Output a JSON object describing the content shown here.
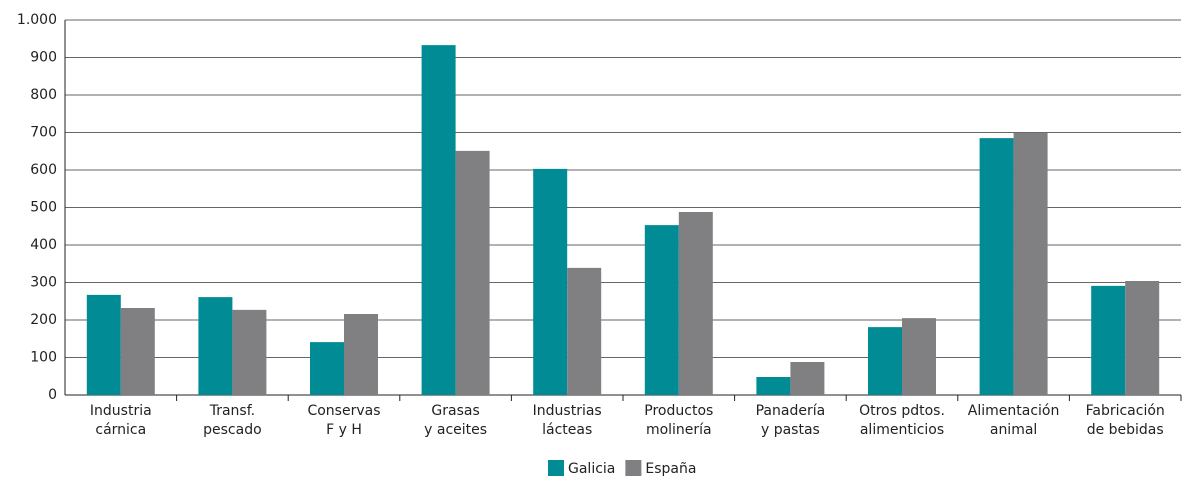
{
  "chart_data": {
    "type": "bar",
    "categories": [
      [
        "Industria",
        "cárnica"
      ],
      [
        "Transf.",
        "pescado"
      ],
      [
        "Conservas",
        "F y H"
      ],
      [
        "Grasas",
        "y aceites"
      ],
      [
        "Industrias",
        "lácteas"
      ],
      [
        "Productos",
        "molinería"
      ],
      [
        "Panadería",
        "y pastas"
      ],
      [
        "Otros pdtos.",
        "alimenticios"
      ],
      [
        "Alimentación",
        "animal"
      ],
      [
        "Fabricación",
        "de bebidas"
      ]
    ],
    "series": [
      {
        "name": "Galicia",
        "color": "#008b95",
        "values": [
          267,
          261,
          141,
          933,
          603,
          453,
          48,
          181,
          685,
          291
        ]
      },
      {
        "name": "España",
        "color": "#808083",
        "values": [
          232,
          227,
          216,
          651,
          339,
          488,
          88,
          205,
          699,
          304
        ]
      }
    ],
    "ylim": [
      0,
      1000
    ],
    "yticks": [
      0,
      100,
      200,
      300,
      400,
      500,
      600,
      700,
      800,
      900,
      {
        "value": 1000,
        "label": "1.000"
      }
    ],
    "grid": true,
    "legend": "bottom"
  }
}
